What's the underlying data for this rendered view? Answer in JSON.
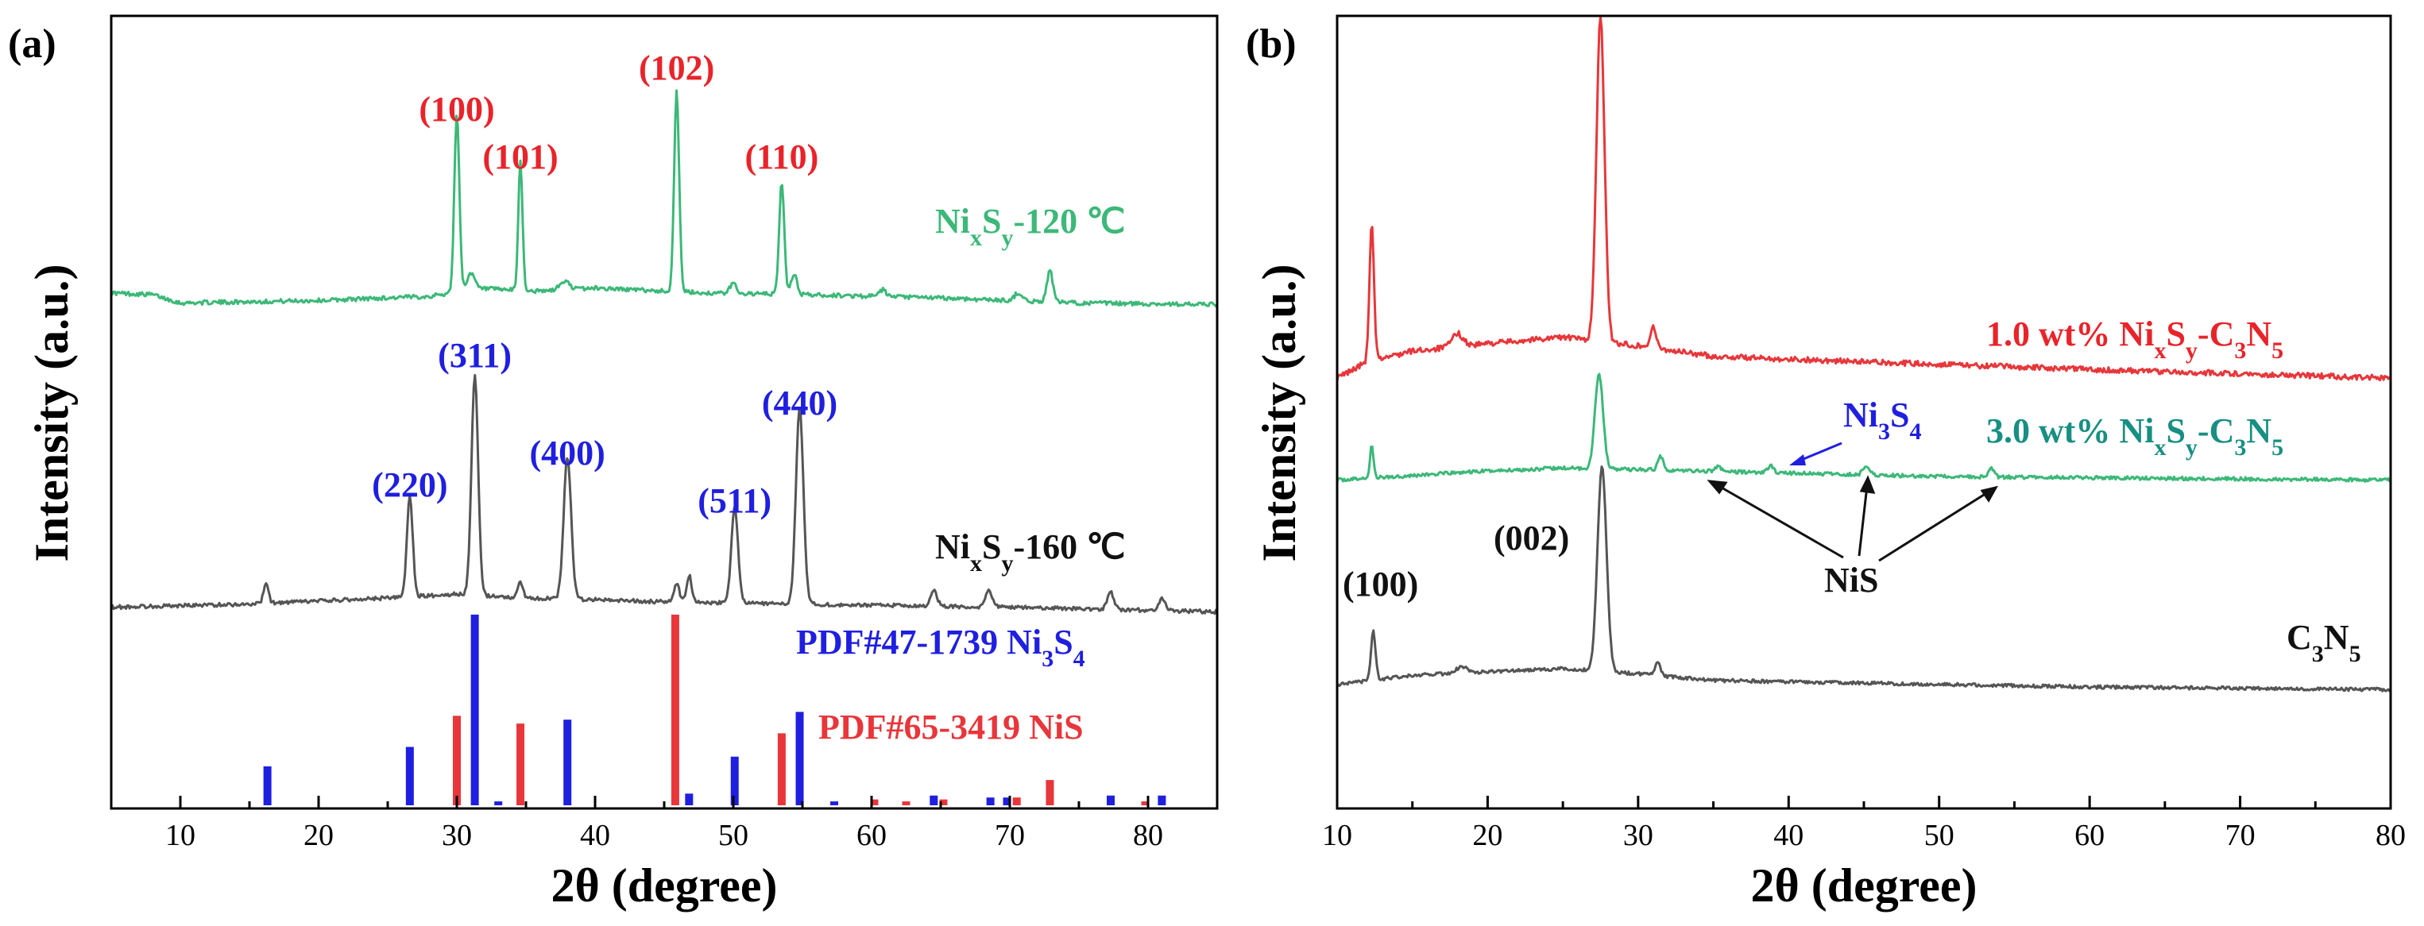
{
  "colors": {
    "green": "#3cb878",
    "gray": "#555555",
    "red": "#e8363a",
    "blue": "#1f1fe0",
    "red_label": "#e8242a",
    "teal_label": "#178f82"
  },
  "chart_data": [
    {
      "panel": "(a)",
      "type": "line",
      "xlabel": "2θ (degree)",
      "ylabel": "Intensity (a.u.)",
      "xlim": [
        5,
        85
      ],
      "xticks": [
        10,
        20,
        30,
        40,
        50,
        60,
        70,
        80
      ],
      "series": [
        {
          "name": "NixSy-120 ℃",
          "label": {
            "main": "Ni",
            "sub1": "x",
            "mid": "S",
            "sub2": "y",
            "tail": "-120 ℃"
          },
          "color": "#3cb878",
          "baseline": [
            [
              5,
              0.22
            ],
            [
              8,
              0.2
            ],
            [
              10,
              0.1
            ],
            [
              20,
              0.13
            ],
            [
              28,
              0.18
            ],
            [
              32,
              0.27
            ],
            [
              36,
              0.24
            ],
            [
              40,
              0.28
            ],
            [
              48,
              0.22
            ],
            [
              55,
              0.2
            ],
            [
              65,
              0.16
            ],
            [
              75,
              0.1
            ],
            [
              85,
              0.08
            ]
          ],
          "peaks": [
            [
              30.0,
              2.15,
              0.3
            ],
            [
              31.0,
              0.2,
              0.5
            ],
            [
              34.6,
              1.55,
              0.25
            ],
            [
              37.8,
              0.1,
              0.6
            ],
            [
              45.9,
              2.4,
              0.3
            ],
            [
              50.0,
              0.12,
              0.4
            ],
            [
              53.5,
              1.35,
              0.3
            ],
            [
              54.4,
              0.25,
              0.35
            ],
            [
              60.8,
              0.08,
              0.4
            ],
            [
              70.6,
              0.1,
              0.4
            ],
            [
              72.9,
              0.38,
              0.35
            ]
          ],
          "labels": [
            {
              "x": 30.0,
              "text": "(100)"
            },
            {
              "x": 34.6,
              "text": "(101)"
            },
            {
              "x": 45.9,
              "text": "(102)"
            },
            {
              "x": 53.5,
              "text": "(110)"
            }
          ]
        },
        {
          "name": "NixSy-160 ℃",
          "label": {
            "main": "Ni",
            "sub1": "x",
            "mid": "S",
            "sub2": "y",
            "tail": "-160 ℃"
          },
          "color": "#555555",
          "baseline": [
            [
              5,
              0.18
            ],
            [
              15,
              0.22
            ],
            [
              25,
              0.3
            ],
            [
              30,
              0.35
            ],
            [
              35,
              0.3
            ],
            [
              45,
              0.25
            ],
            [
              55,
              0.22
            ],
            [
              70,
              0.18
            ],
            [
              85,
              0.12
            ]
          ],
          "peaks": [
            [
              16.2,
              0.25,
              0.3
            ],
            [
              26.6,
              1.3,
              0.35
            ],
            [
              31.3,
              2.85,
              0.4
            ],
            [
              34.6,
              0.2,
              0.3
            ],
            [
              38.0,
              1.85,
              0.45
            ],
            [
              45.9,
              0.25,
              0.3
            ],
            [
              46.8,
              0.35,
              0.3
            ],
            [
              50.1,
              1.25,
              0.4
            ],
            [
              54.8,
              2.55,
              0.45
            ],
            [
              64.5,
              0.2,
              0.4
            ],
            [
              68.5,
              0.2,
              0.4
            ],
            [
              77.3,
              0.22,
              0.4
            ],
            [
              81.0,
              0.15,
              0.4
            ]
          ],
          "labels": [
            {
              "x": 26.6,
              "text": "(220)"
            },
            {
              "x": 31.3,
              "text": "(311)"
            },
            {
              "x": 38.0,
              "text": "(400)"
            },
            {
              "x": 50.1,
              "text": "(511)"
            },
            {
              "x": 54.8,
              "text": "(440)"
            }
          ]
        }
      ],
      "references": [
        {
          "name": "PDF#47-1739 Ni3S4",
          "label": {
            "main": "PDF#47-1739 Ni",
            "sub": "3",
            "tail": "S",
            "tail2": "4"
          },
          "color": "#1f1fe0",
          "sticks": [
            [
              16.3,
              0.2
            ],
            [
              26.6,
              0.3
            ],
            [
              31.3,
              0.98
            ],
            [
              33.0,
              0.02
            ],
            [
              38.0,
              0.44
            ],
            [
              46.8,
              0.06
            ],
            [
              50.1,
              0.25
            ],
            [
              54.8,
              0.48
            ],
            [
              57.3,
              0.02
            ],
            [
              64.5,
              0.05
            ],
            [
              68.6,
              0.04
            ],
            [
              69.8,
              0.04
            ],
            [
              77.3,
              0.05
            ],
            [
              81.0,
              0.05
            ]
          ]
        },
        {
          "name": "PDF#65-3419 NiS",
          "color": "#e8363a",
          "sticks": [
            [
              30.0,
              0.46
            ],
            [
              34.6,
              0.42
            ],
            [
              45.8,
              0.98
            ],
            [
              53.5,
              0.37
            ],
            [
              60.2,
              0.03
            ],
            [
              62.5,
              0.02
            ],
            [
              65.2,
              0.03
            ],
            [
              70.5,
              0.04
            ],
            [
              72.9,
              0.13
            ],
            [
              79.8,
              0.02
            ]
          ]
        }
      ]
    },
    {
      "panel": "(b)",
      "type": "line",
      "xlabel": "2θ (degree)",
      "ylabel": "Intensity (a.u.)",
      "xlim": [
        10,
        80
      ],
      "xticks": [
        10,
        20,
        30,
        40,
        50,
        60,
        70,
        80
      ],
      "series": [
        {
          "name": "1.0 wt% NixSy-C3N5",
          "label": {
            "pre": "1.0 wt% Ni",
            "s1": "x",
            "m1": "S",
            "s2": "y",
            "m2": "-C",
            "s3": "3",
            "m3": "N",
            "s4": "5"
          },
          "color": "#e8363a",
          "baseline": [
            [
              10,
              0.0
            ],
            [
              12,
              0.15
            ],
            [
              15,
              0.25
            ],
            [
              20,
              0.32
            ],
            [
              25,
              0.38
            ],
            [
              30,
              0.3
            ],
            [
              35,
              0.2
            ],
            [
              45,
              0.15
            ],
            [
              60,
              0.08
            ],
            [
              80,
              0.0
            ]
          ],
          "peaks": [
            [
              12.3,
              1.25,
              0.25
            ],
            [
              18.0,
              0.12,
              0.6
            ],
            [
              27.5,
              3.0,
              0.45
            ],
            [
              31.0,
              0.2,
              0.3
            ]
          ]
        },
        {
          "name": "3.0 wt% NixSy-C3N5",
          "label": {
            "pre": "3.0 wt% Ni",
            "s1": "x",
            "m1": "S",
            "s2": "y",
            "m2": "-C",
            "s3": "3",
            "m3": "N",
            "s4": "5"
          },
          "color": "#3cb878",
          "baseline": [
            [
              10,
              0.05
            ],
            [
              20,
              0.18
            ],
            [
              25,
              0.22
            ],
            [
              30,
              0.2
            ],
            [
              40,
              0.15
            ],
            [
              50,
              0.1
            ],
            [
              80,
              0.05
            ]
          ],
          "peaks": [
            [
              12.3,
              0.45,
              0.2
            ],
            [
              27.4,
              1.35,
              0.45
            ],
            [
              31.5,
              0.2,
              0.3
            ],
            [
              35.3,
              0.08,
              0.3
            ],
            [
              38.8,
              0.1,
              0.3
            ],
            [
              45.2,
              0.12,
              0.4
            ],
            [
              53.5,
              0.12,
              0.3
            ]
          ]
        },
        {
          "name": "C3N5",
          "label": {
            "pre": "C",
            "s1": "3",
            "m1": "N",
            "s2": "5"
          },
          "color": "#555555",
          "baseline": [
            [
              10,
              0.15
            ],
            [
              15,
              0.3
            ],
            [
              20,
              0.35
            ],
            [
              25,
              0.4
            ],
            [
              30,
              0.32
            ],
            [
              35,
              0.22
            ],
            [
              45,
              0.18
            ],
            [
              60,
              0.12
            ],
            [
              80,
              0.08
            ]
          ],
          "peaks": [
            [
              12.4,
              0.75,
              0.25
            ],
            [
              18.3,
              0.1,
              0.6
            ],
            [
              27.6,
              3.1,
              0.5
            ],
            [
              31.3,
              0.2,
              0.3
            ]
          ]
        }
      ],
      "annotations": {
        "peak_100": "(100)",
        "peak_002": "(002)",
        "ni3s4": {
          "main": "Ni",
          "sub": "3",
          "tail": "S",
          "tail2": "4"
        },
        "nis": "NiS"
      }
    }
  ]
}
